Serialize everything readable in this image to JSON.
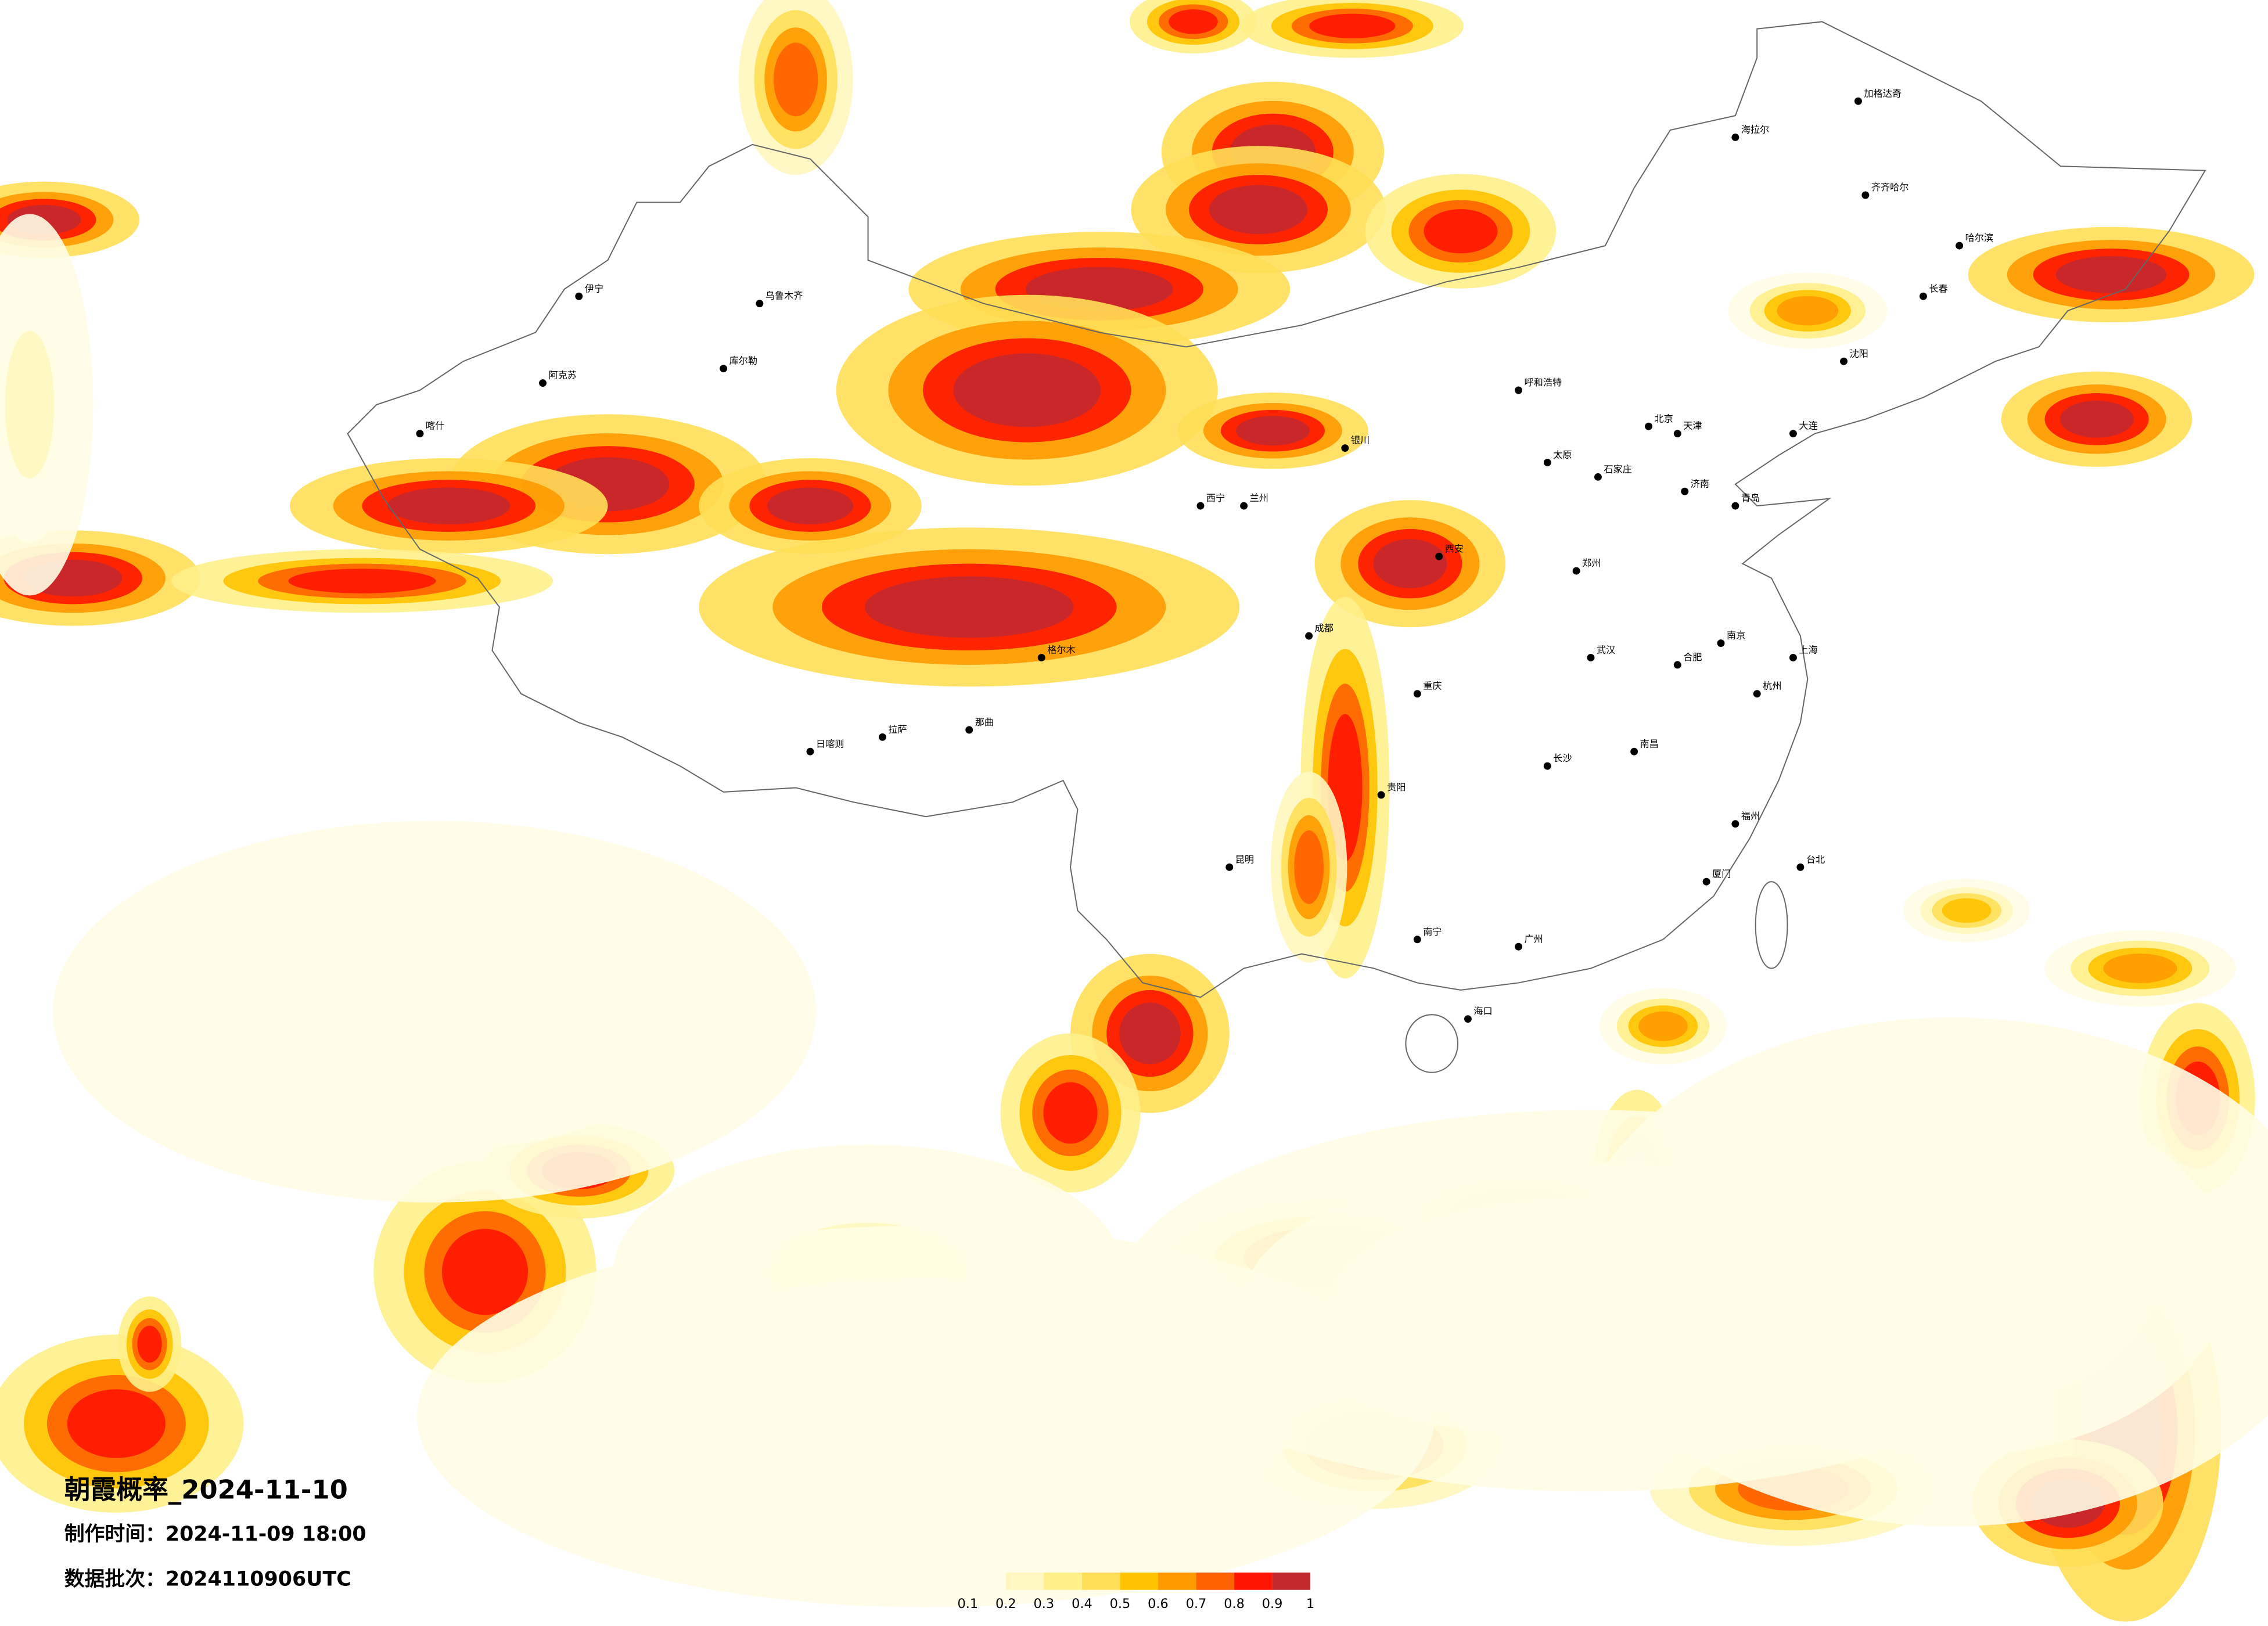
{
  "map": {
    "title": "朝霞概率_2024-11-10",
    "issued": "制作时间：2024-11-09 18:00",
    "batch": "数据批次：2024110906UTC",
    "legend": {
      "ticks": [
        0.1,
        0.2,
        0.3,
        0.4,
        0.5,
        0.6,
        0.7,
        0.8,
        0.9,
        1
      ],
      "colors": [
        "#fffde6",
        "#fff7bf",
        "#fff08a",
        "#ffdf57",
        "#ffc300",
        "#ff9a00",
        "#ff6200",
        "#ff1600",
        "#c3282d"
      ]
    },
    "cities": [
      "北京",
      "上海",
      "广州",
      "成都",
      "重庆",
      "武汉",
      "西安",
      "兰州",
      "乌鲁木齐",
      "拉萨",
      "哈尔滨",
      "长春",
      "沈阳",
      "昆明",
      "南宁",
      "贵阳",
      "长沙",
      "郑州",
      "济南",
      "南京",
      "杭州",
      "福州",
      "海口",
      "台北",
      "呼和浩特",
      "银川",
      "西宁",
      "太原",
      "石家庄",
      "天津",
      "合肥",
      "南昌",
      "大连",
      "青岛",
      "厦门",
      "喀什",
      "库尔勒",
      "伊宁",
      "阿克苏",
      "格尔木",
      "日喀则",
      "那曲",
      "海拉尔",
      "齐齐哈尔",
      "加格达奇"
    ]
  }
}
